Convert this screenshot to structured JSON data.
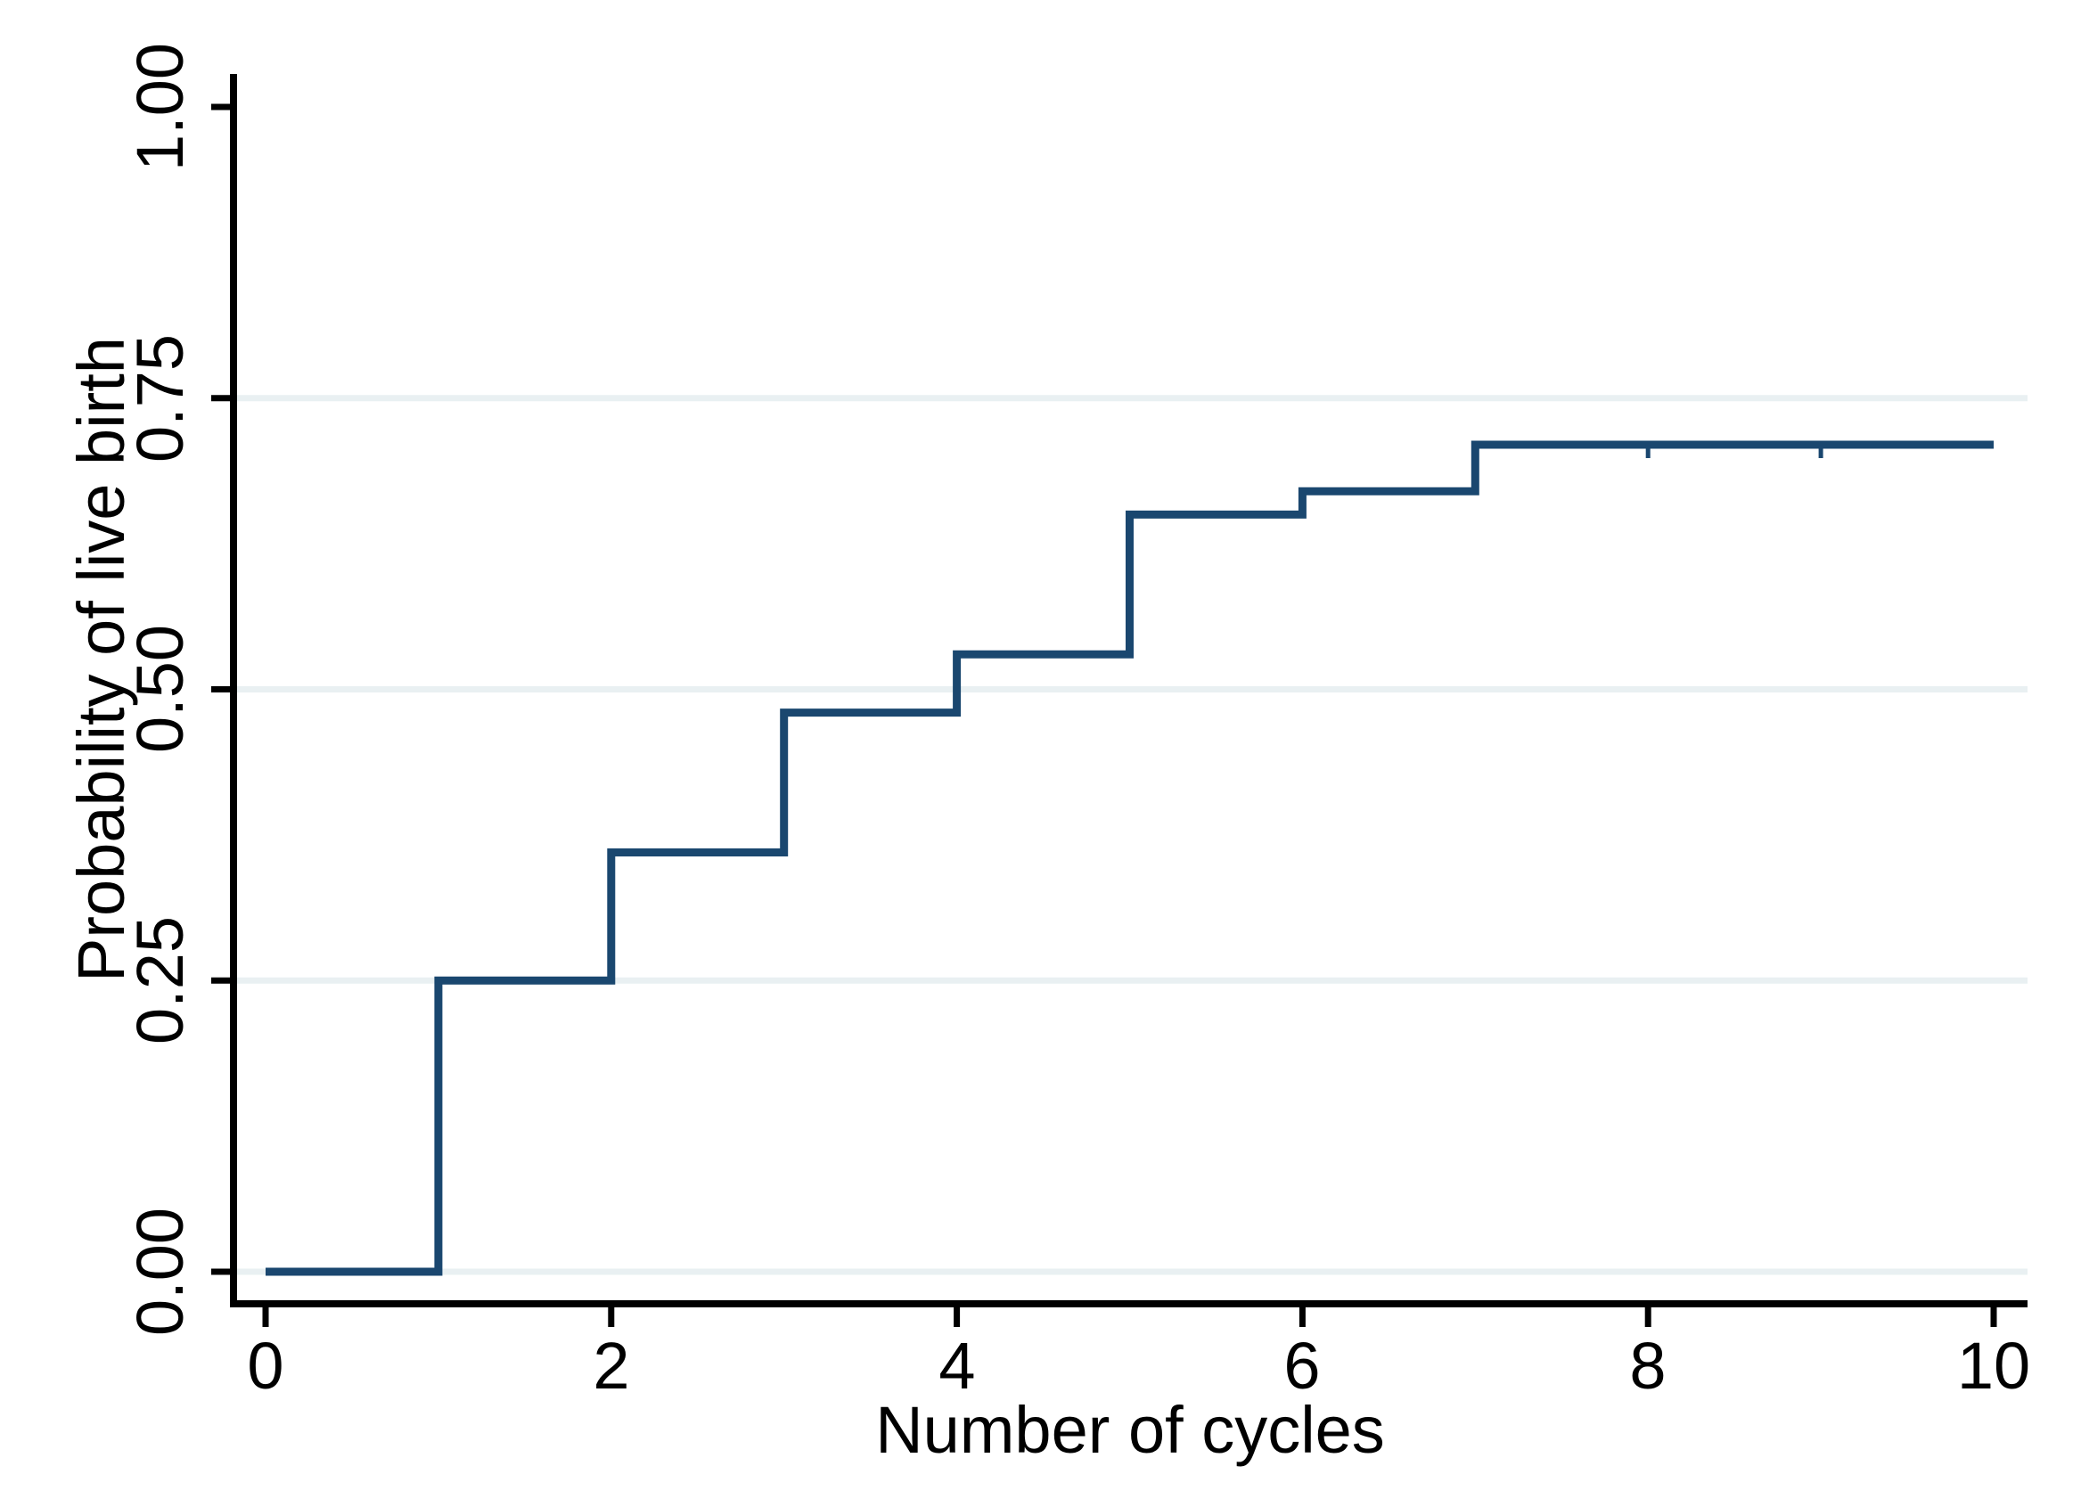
{
  "figure": {
    "x_axis": {
      "title": "Number of cycles",
      "tick_labels": [
        "0",
        "2",
        "4",
        "6",
        "8",
        "10"
      ],
      "tick_values": [
        0,
        2,
        4,
        6,
        8,
        10
      ],
      "range": [
        0,
        10
      ]
    },
    "y_axis": {
      "title": "Probability of live birth",
      "tick_labels": [
        "0.00",
        "0.25",
        "0.50",
        "0.75",
        "1.00"
      ],
      "tick_values": [
        0,
        0.25,
        0.5,
        0.75,
        1.0
      ],
      "gridline_values": [
        0,
        0.25,
        0.5,
        0.75
      ],
      "range": [
        0,
        1
      ]
    },
    "colors": {
      "curve": "#1a476f",
      "gridline": "#e9f0f2",
      "axis": "#000000",
      "background": "#ffffff"
    }
  },
  "chart_data": {
    "type": "line",
    "subtype": "step-function (Kaplan-Meier style cumulative probability curve)",
    "title": "",
    "xlabel": "Number of cycles",
    "ylabel": "Probability of live birth",
    "xlim": [
      0,
      10
    ],
    "ylim": [
      0,
      1
    ],
    "grid": "horizontal gridlines at 0.00, 0.25, 0.50, 0.75; none at 1.00",
    "legend": "none",
    "steps": [
      {
        "from": 0,
        "to": 1,
        "p": 0.0
      },
      {
        "from": 1,
        "to": 2,
        "p": 0.25
      },
      {
        "from": 2,
        "to": 3,
        "p": 0.36
      },
      {
        "from": 3,
        "to": 4,
        "p": 0.48
      },
      {
        "from": 4,
        "to": 5,
        "p": 0.53
      },
      {
        "from": 5,
        "to": 6,
        "p": 0.65
      },
      {
        "from": 6,
        "to": 7,
        "p": 0.67
      },
      {
        "from": 7,
        "to": 10,
        "p": 0.71
      }
    ],
    "step_jump_x": [
      1,
      2,
      3,
      4,
      5,
      6,
      7
    ],
    "censor_mark_x": [
      8,
      9
    ],
    "censor_mark_p": 0.71
  }
}
